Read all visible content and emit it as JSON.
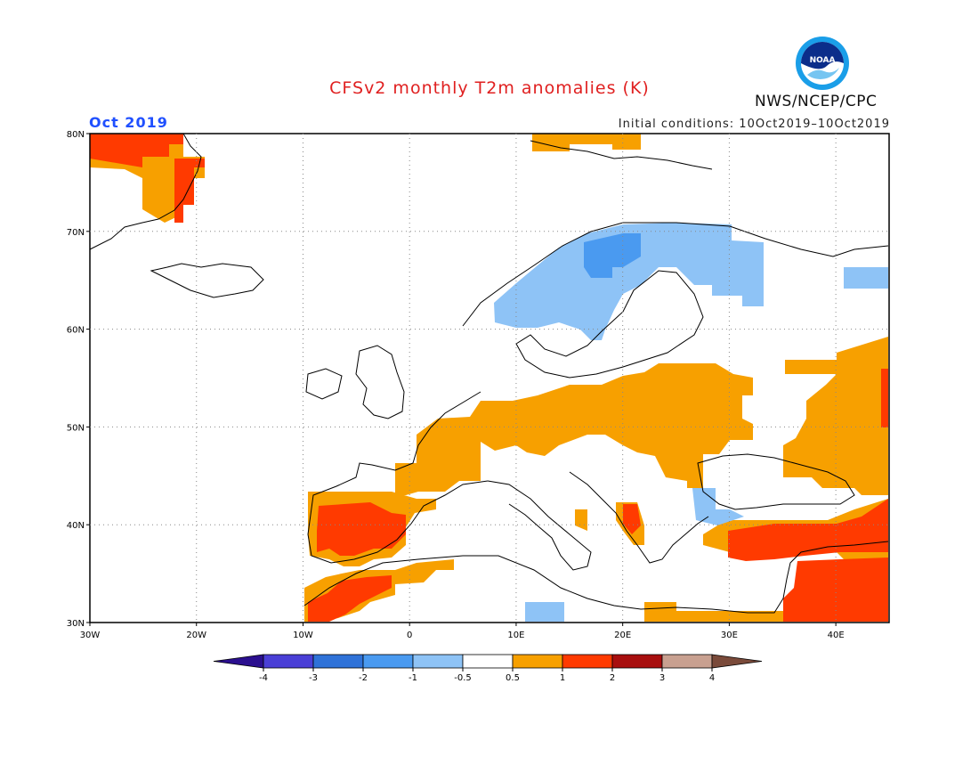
{
  "header": {
    "title": "CFSv2 monthly T2m anomalies (K)",
    "agency": "NWS/NCEP/CPC",
    "logo_text": "NOAA",
    "month": "Oct 2019",
    "initial_conditions": "Initial conditions: 10Oct2019–10Oct2019"
  },
  "map": {
    "lat_labels": [
      "80N",
      "70N",
      "60N",
      "50N",
      "40N",
      "30N"
    ],
    "lon_labels": [
      "30W",
      "20W",
      "10W",
      "0",
      "10E",
      "20E",
      "30E",
      "40E"
    ],
    "extent": {
      "lon_min": -30,
      "lon_max": 45,
      "lat_min": 30,
      "lat_max": 80
    },
    "grid": "dotted"
  },
  "colorbar": {
    "labels": [
      "-4",
      "-3",
      "-2",
      "-1",
      "-0.5",
      "0.5",
      "1",
      "2",
      "3",
      "4"
    ],
    "colors": [
      "#2b0f8f",
      "#4a3fd6",
      "#2f72d8",
      "#4a9af0",
      "#8ec3f6",
      "#ffffff",
      "#f7a000",
      "#ff3a00",
      "#a80e0e",
      "#c8a090",
      "#7a4a3a"
    ]
  }
}
